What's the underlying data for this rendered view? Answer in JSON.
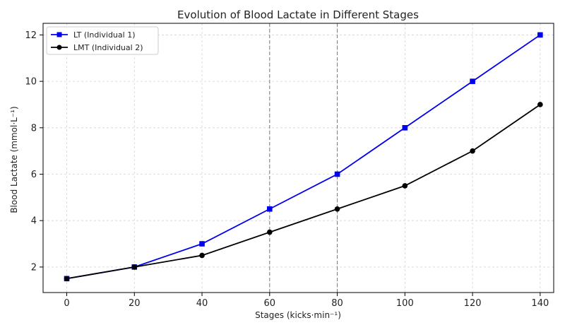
{
  "chart_data": {
    "type": "line",
    "title": "Evolution of Blood Lactate in Different Stages",
    "xlabel": "Stages (kicks·min⁻¹)",
    "ylabel": "Blood Lactate (mmol·L⁻¹)",
    "x": [
      0,
      20,
      40,
      60,
      80,
      100,
      120,
      140
    ],
    "xticks": [
      0,
      20,
      40,
      60,
      80,
      100,
      120,
      140
    ],
    "yticks": [
      2,
      4,
      6,
      8,
      10,
      12
    ],
    "xlim": [
      -7,
      144
    ],
    "ylim": [
      0.9,
      12.5
    ],
    "grid": true,
    "legend_position": "top-left",
    "vertical_markers": [
      60,
      80
    ],
    "series": [
      {
        "name": "LT (Individual 1)",
        "values": [
          1.5,
          2,
          3,
          4.5,
          6,
          8,
          10,
          12
        ],
        "color": "#0000ee",
        "marker": "square"
      },
      {
        "name": "LMT (Individual 2)",
        "values": [
          1.5,
          2,
          2.5,
          3.5,
          4.5,
          5.5,
          7,
          9
        ],
        "color": "#000000",
        "marker": "circle"
      }
    ]
  }
}
